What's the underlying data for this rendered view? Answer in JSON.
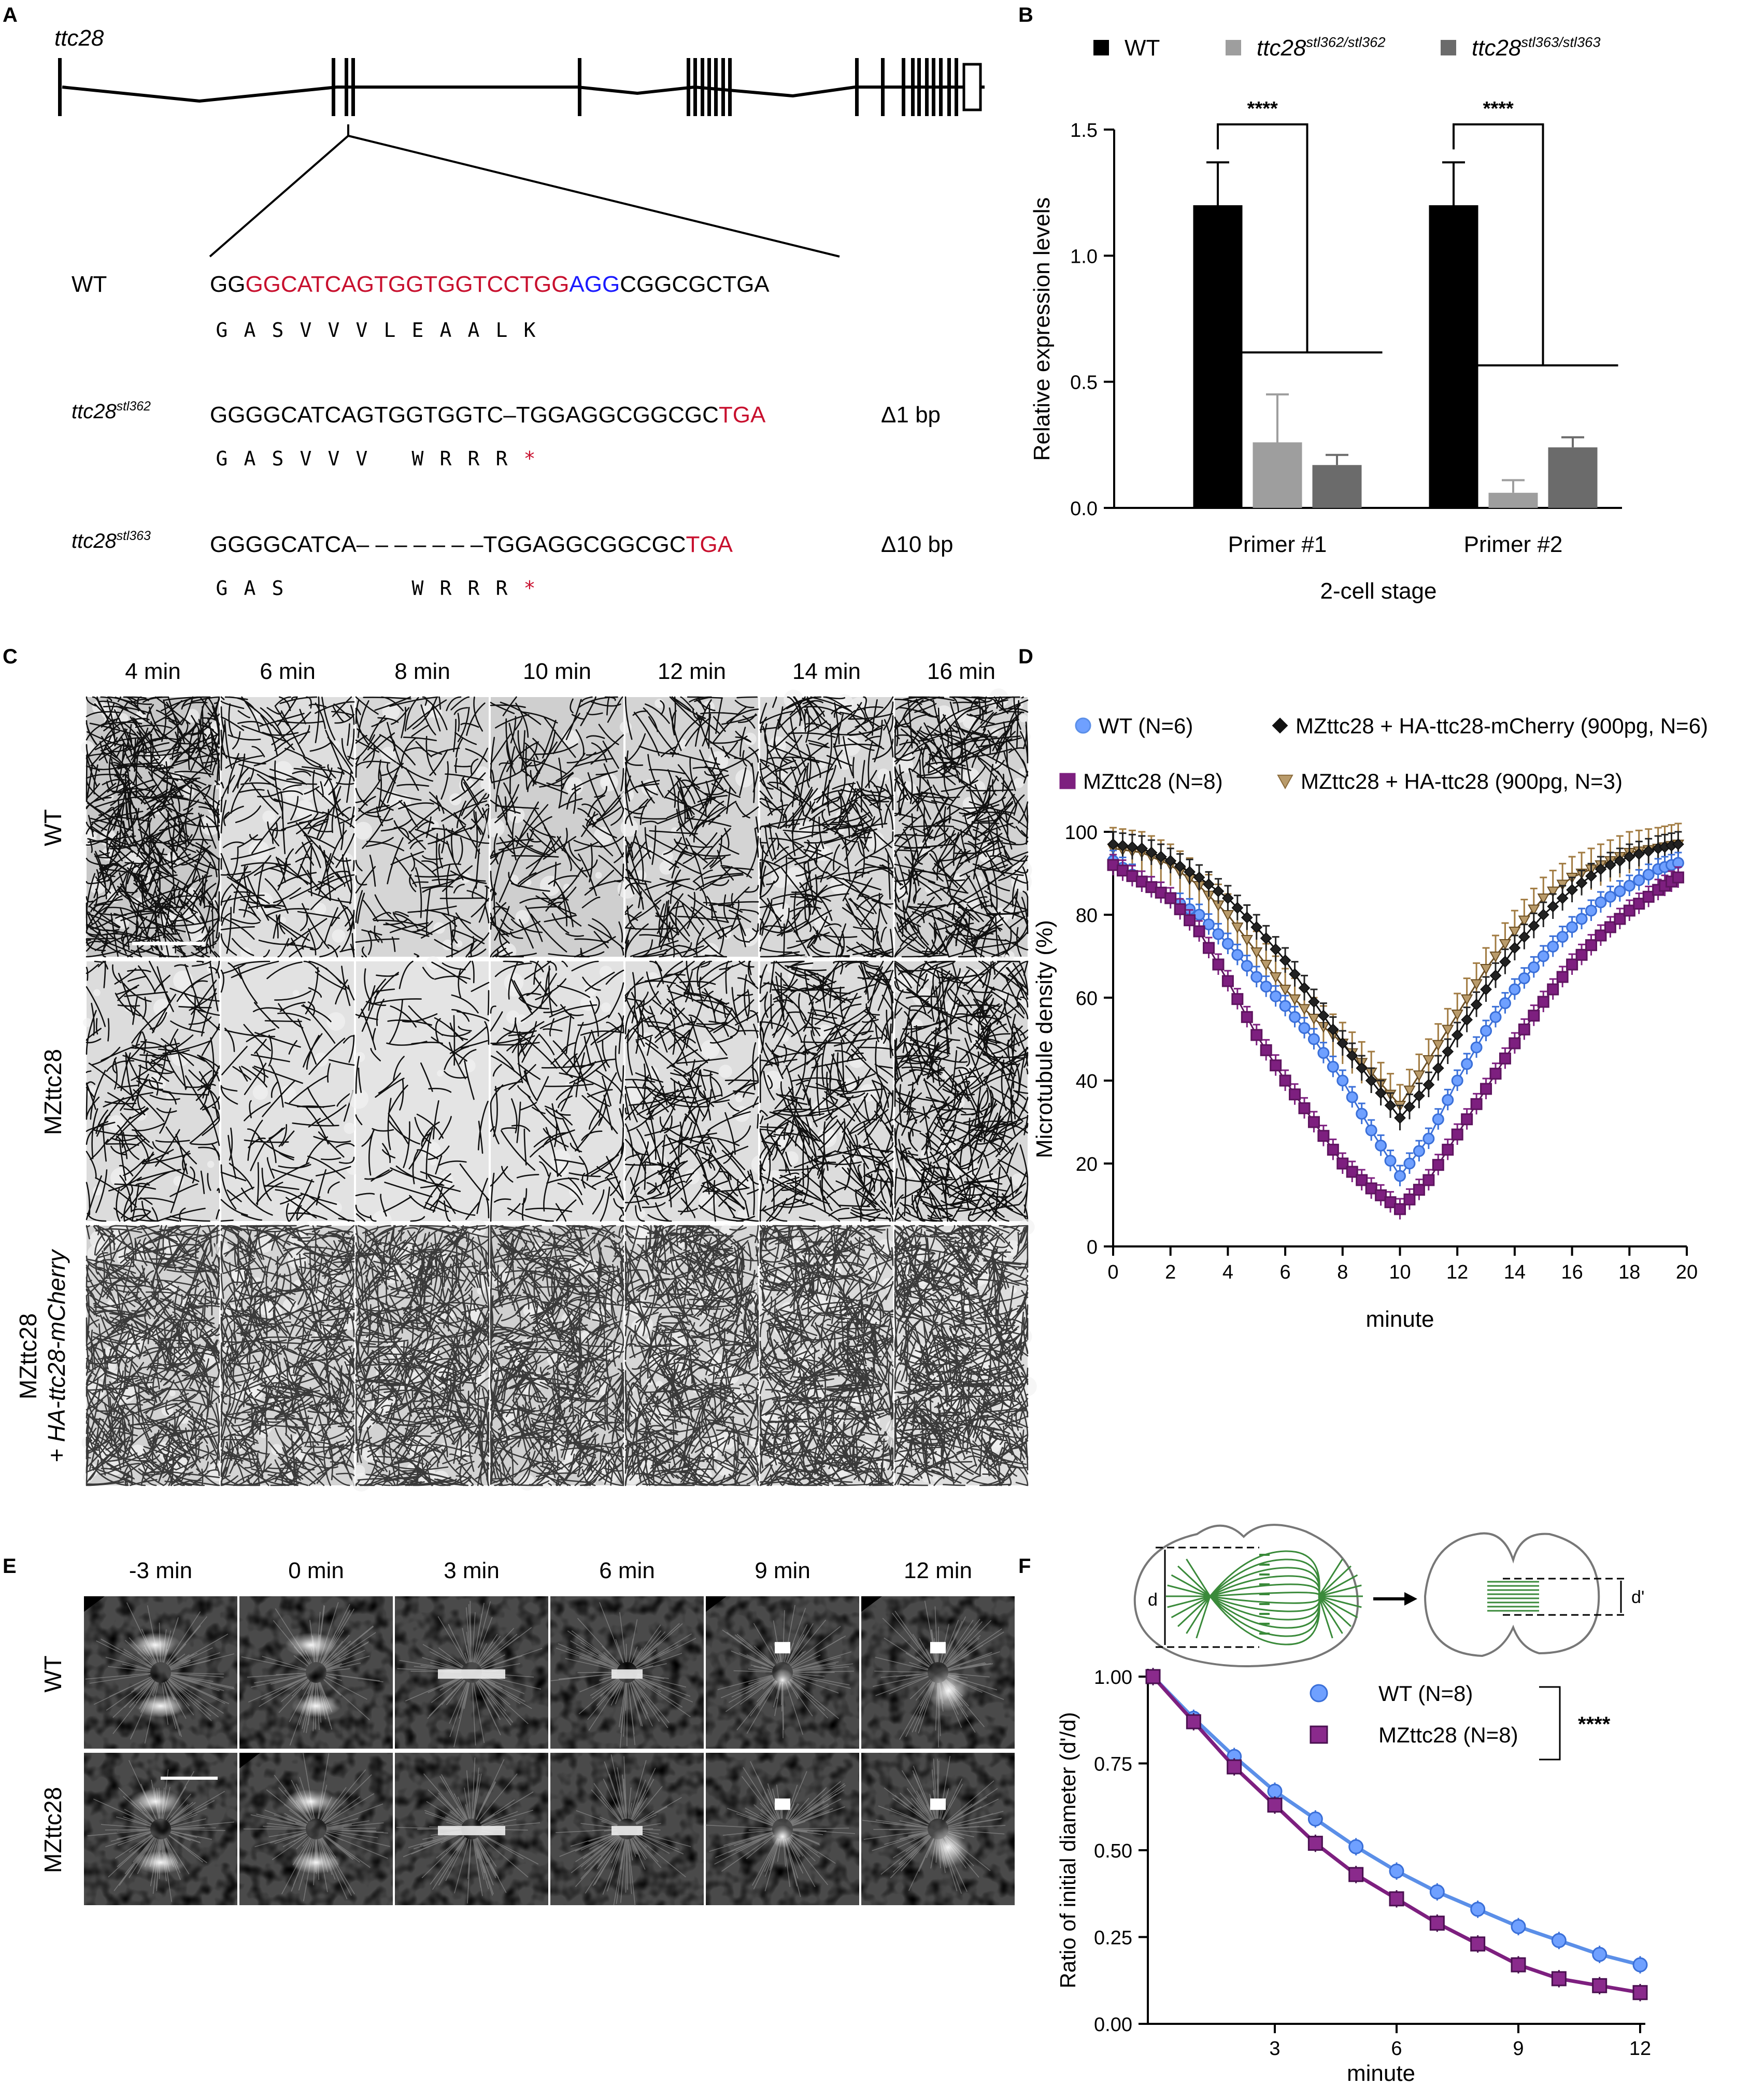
{
  "panels": {
    "a": "A",
    "b": "B",
    "c": "C",
    "d": "D",
    "e": "E",
    "f": "F"
  },
  "panelA": {
    "gene": "ttc28",
    "rows": [
      {
        "label": "WT",
        "seq": [
          {
            "t": "GG",
            "c": "#000000"
          },
          {
            "t": "GGCATCAGTGGTGGTCCTGG",
            "c": "#c8102e"
          },
          {
            "t": "AGG",
            "c": "#1a1aff"
          },
          {
            "t": "CGGCGCTGA",
            "c": "#000000"
          }
        ],
        "aa": [
          "G",
          "A",
          "S",
          "V",
          "V",
          "V",
          "L",
          "E",
          "A",
          "A",
          "L",
          "K"
        ],
        "delta": ""
      },
      {
        "label": "ttc28",
        "sup": "stl362",
        "seq": [
          {
            "t": "GGGGCATCAGTGGTGGTC–TGGAGGCGGCGC",
            "c": "#000000"
          },
          {
            "t": "TGA",
            "c": "#c8102e"
          }
        ],
        "aa": [
          "G",
          "A",
          "S",
          "V",
          "V",
          "V",
          "",
          "W",
          "R",
          "R",
          "R",
          "*"
        ],
        "delta": "Δ1 bp"
      },
      {
        "label": "ttc28",
        "sup": "stl363",
        "seq": [
          {
            "t": "GGGGCATCA– – – – – – –TGGAGGCGGCGC",
            "c": "#000000"
          },
          {
            "t": "TGA",
            "c": "#c8102e"
          }
        ],
        "aa": [
          "G",
          "A",
          "S",
          "",
          "",
          "",
          "",
          "W",
          "R",
          "R",
          "R",
          "*"
        ],
        "delta": "Δ10 bp"
      }
    ]
  },
  "panelB": {
    "legend": [
      {
        "name": "WT",
        "sup": "",
        "color": "#000000"
      },
      {
        "name": "ttc28",
        "sup": "stl362/stl362",
        "color": "#9e9e9e"
      },
      {
        "name": "ttc28",
        "sup": "stl363/stl363",
        "color": "#6b6b6b"
      }
    ],
    "chart_data": {
      "type": "bar",
      "categories": [
        "Primer #1",
        "Primer #2"
      ],
      "series": [
        {
          "name": "WT",
          "values": [
            1.2,
            1.2
          ],
          "err": [
            0.17,
            0.17
          ]
        },
        {
          "name": "ttc28 stl362/stl362",
          "values": [
            0.26,
            0.06
          ],
          "err": [
            0.19,
            0.05
          ]
        },
        {
          "name": "ttc28 stl363/stl363",
          "values": [
            0.17,
            0.24
          ],
          "err": [
            0.04,
            0.04
          ]
        }
      ],
      "ylabel": "Relative expression levels",
      "xlabel": "2-cell stage",
      "ylim": [
        0,
        1.5
      ],
      "yticks": [
        "0.0",
        "0.5",
        "1.0",
        "1.5"
      ],
      "significance": [
        "****",
        "****"
      ]
    }
  },
  "panelC": {
    "times": [
      "4 min",
      "6 min",
      "8 min",
      "10 min",
      "12 min",
      "14 min",
      "16 min"
    ],
    "rows": [
      {
        "label": "WT",
        "sup": ""
      },
      {
        "label": "MZttc28",
        "sup": ""
      },
      {
        "label": "MZttc28",
        "sub": "+ HA-ttc28-mCherry"
      }
    ]
  },
  "panelD": {
    "legend": [
      {
        "label": "WT (N=6)",
        "color": "#5b8fe8",
        "marker": "circle"
      },
      {
        "label": "MZttc28 + HA-ttc28-mCherry  (900pg, N=6)",
        "color": "#111111",
        "marker": "diamond"
      },
      {
        "label": "MZttc28 (N=8)",
        "color": "#7d1f7f",
        "marker": "square"
      },
      {
        "label": "MZttc28 + HA-ttc28  (900pg, N=3)",
        "color": "#8a6a3a",
        "marker": "triangle"
      }
    ],
    "chart_data": {
      "type": "line",
      "xlabel": "minute",
      "ylabel": "Microtubule density (%)",
      "xlim": [
        0,
        20
      ],
      "ylim": [
        0,
        100
      ],
      "xticks": [
        "0",
        "2",
        "4",
        "6",
        "8",
        "10",
        "12",
        "14",
        "16",
        "18",
        "20"
      ],
      "yticks": [
        "0",
        "20",
        "40",
        "60",
        "80",
        "100"
      ],
      "series": [
        {
          "name": "WT",
          "values": [
            [
              0,
              93
            ],
            [
              1,
              88
            ],
            [
              2,
              84
            ],
            [
              3,
              80
            ],
            [
              4,
              73
            ],
            [
              5,
              65
            ],
            [
              6,
              58
            ],
            [
              7,
              50
            ],
            [
              8,
              40
            ],
            [
              9,
              28
            ],
            [
              10,
              17
            ],
            [
              11,
              26
            ],
            [
              12,
              40
            ],
            [
              13,
              52
            ],
            [
              14,
              62
            ],
            [
              15,
              70
            ],
            [
              16,
              77
            ],
            [
              17,
              83
            ],
            [
              18,
              87
            ],
            [
              19,
              91
            ],
            [
              19.7,
              92.5
            ]
          ]
        },
        {
          "name": "MZttc28",
          "values": [
            [
              0,
              92
            ],
            [
              1,
              88
            ],
            [
              2,
              84
            ],
            [
              3,
              76
            ],
            [
              4,
              64
            ],
            [
              5,
              51
            ],
            [
              6,
              40
            ],
            [
              7,
              30
            ],
            [
              8,
              20
            ],
            [
              9,
              14
            ],
            [
              10,
              9
            ],
            [
              11,
              16
            ],
            [
              12,
              27
            ],
            [
              13,
              38
            ],
            [
              14,
              49
            ],
            [
              15,
              59
            ],
            [
              16,
              68
            ],
            [
              17,
              75
            ],
            [
              18,
              81
            ],
            [
              19,
              86
            ],
            [
              19.7,
              89
            ]
          ]
        },
        {
          "name": "MZttc28 + HA-ttc28-mCherry",
          "values": [
            [
              0,
              97
            ],
            [
              1,
              96
            ],
            [
              2,
              93
            ],
            [
              3,
              89
            ],
            [
              4,
              84
            ],
            [
              5,
              77
            ],
            [
              6,
              69
            ],
            [
              7,
              59
            ],
            [
              8,
              49
            ],
            [
              9,
              40
            ],
            [
              10,
              31
            ],
            [
              11,
              39
            ],
            [
              12,
              51
            ],
            [
              13,
              62
            ],
            [
              14,
              72
            ],
            [
              15,
              80
            ],
            [
              16,
              86
            ],
            [
              17,
              91
            ],
            [
              18,
              94
            ],
            [
              19,
              96
            ],
            [
              19.7,
              97
            ]
          ]
        },
        {
          "name": "MZttc28 + HA-ttc28",
          "values": [
            [
              0,
              96
            ],
            [
              1,
              95
            ],
            [
              2,
              92
            ],
            [
              3,
              87
            ],
            [
              4,
              80
            ],
            [
              5,
              71
            ],
            [
              6,
              62
            ],
            [
              7,
              55
            ],
            [
              8,
              49
            ],
            [
              9,
              42
            ],
            [
              10,
              34
            ],
            [
              11,
              45
            ],
            [
              12,
              56
            ],
            [
              13,
              67
            ],
            [
              14,
              76
            ],
            [
              15,
              84
            ],
            [
              16,
              89
            ],
            [
              17,
              92
            ],
            [
              18,
              95
            ],
            [
              19,
              96
            ],
            [
              19.7,
              97
            ]
          ]
        }
      ]
    }
  },
  "panelE": {
    "times": [
      "-3 min",
      "0 min",
      "3 min",
      "6 min",
      "9 min",
      "12 min"
    ],
    "rows": [
      "WT",
      "MZttc28"
    ]
  },
  "panelF": {
    "schematic": {
      "d": "d",
      "dp": "d'"
    },
    "legend": [
      {
        "label": "WT (N=8)",
        "color": "#5b8fe8",
        "marker": "circle"
      },
      {
        "label": "MZttc28 (N=8)",
        "color": "#7d1f7f",
        "marker": "square"
      }
    ],
    "significance": "****",
    "chart_data": {
      "type": "line",
      "xlabel": "minute",
      "ylabel": "Ratio of initial diameter (d'/d)",
      "xlim": [
        0,
        12
      ],
      "ylim": [
        0,
        1
      ],
      "xticks": [
        "3",
        "6",
        "9",
        "12"
      ],
      "yticks": [
        "0.00",
        "0.25",
        "0.50",
        "0.75",
        "1.00"
      ],
      "series": [
        {
          "name": "WT (N=8)",
          "x": [
            0,
            1,
            2,
            3,
            4,
            5,
            6,
            7,
            8,
            9,
            10,
            11,
            12
          ],
          "values": [
            1.0,
            0.88,
            0.77,
            0.67,
            0.59,
            0.51,
            0.44,
            0.38,
            0.33,
            0.28,
            0.24,
            0.2,
            0.17
          ]
        },
        {
          "name": "MZttc28 (N=8)",
          "x": [
            0,
            1,
            2,
            3,
            4,
            5,
            6,
            7,
            8,
            9,
            10,
            11,
            12
          ],
          "values": [
            1.0,
            0.87,
            0.74,
            0.63,
            0.52,
            0.43,
            0.36,
            0.29,
            0.23,
            0.17,
            0.13,
            0.11,
            0.09
          ]
        }
      ]
    }
  }
}
